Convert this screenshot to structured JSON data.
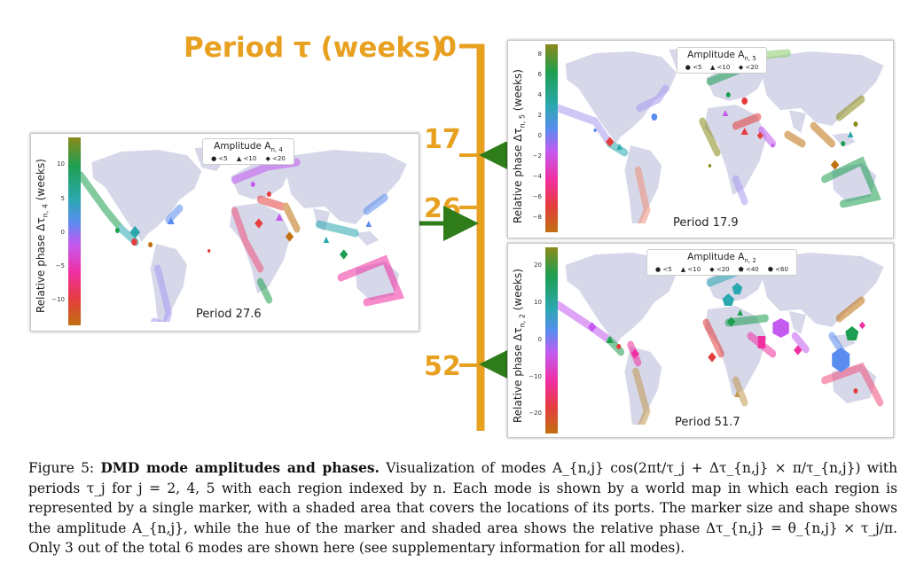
{
  "timeline": {
    "title": "Period τ (weeks)",
    "ticks": [
      {
        "label": "0"
      },
      {
        "label": "17"
      },
      {
        "label": "26"
      },
      {
        "label": "52"
      }
    ],
    "color": "#e8a020",
    "arrow_color": "#2e7d1a"
  },
  "panels": {
    "mode4": {
      "period_text": "Period 27.6",
      "colorbar_label": "Relative phase Δτ",
      "colorbar_sub": "n, 4",
      "colorbar_suffix": " (weeks)",
      "colorbar_ticks": [
        "10",
        "5",
        "0",
        "−5",
        "−10"
      ],
      "legend_title": "Amplitude A",
      "legend_sub": "n, 4",
      "legend_items": [
        "<5",
        "<10",
        "<20"
      ]
    },
    "mode5": {
      "period_text": "Period 17.9",
      "colorbar_label": "Relative phase Δτ",
      "colorbar_sub": "n, 5",
      "colorbar_suffix": " (weeks)",
      "colorbar_ticks": [
        "8",
        "6",
        "4",
        "2",
        "0",
        "−2",
        "−4",
        "−6",
        "−8"
      ],
      "legend_title": "Amplitude A",
      "legend_sub": "n, 5",
      "legend_items": [
        "<5",
        "<10",
        "<20"
      ]
    },
    "mode2": {
      "period_text": "Period 51.7",
      "colorbar_label": "Relative phase Δτ",
      "colorbar_sub": "n, 2",
      "colorbar_suffix": " (weeks)",
      "colorbar_ticks": [
        "20",
        "10",
        "0",
        "−10",
        "−20"
      ],
      "legend_title": "Amplitude A",
      "legend_sub": "n, 2",
      "legend_items": [
        "<5",
        "<10",
        "<20",
        "<40",
        "<60"
      ]
    }
  },
  "caption": {
    "figure": "Figure 5:",
    "bold_title": "DMD mode amplitudes and phases.",
    "text": "Visualization of modes A_{n,j} cos(2πt/τ_j + Δτ_{n,j} × π/τ_{n,j}) with periods τ_j for j = 2, 4, 5 with each region indexed by n. Each mode is shown by a world map in which each region is represented by a single marker, with a shaded area that covers the locations of its ports. The marker size and shape shows the amplitude A_{n,j}, while the hue of the marker and shaded area shows the relative phase Δτ_{n,j} = θ_{n,j} × τ_j/π. Only 3 out of the total 6 modes are shown here (see supplementary information for all modes)."
  }
}
